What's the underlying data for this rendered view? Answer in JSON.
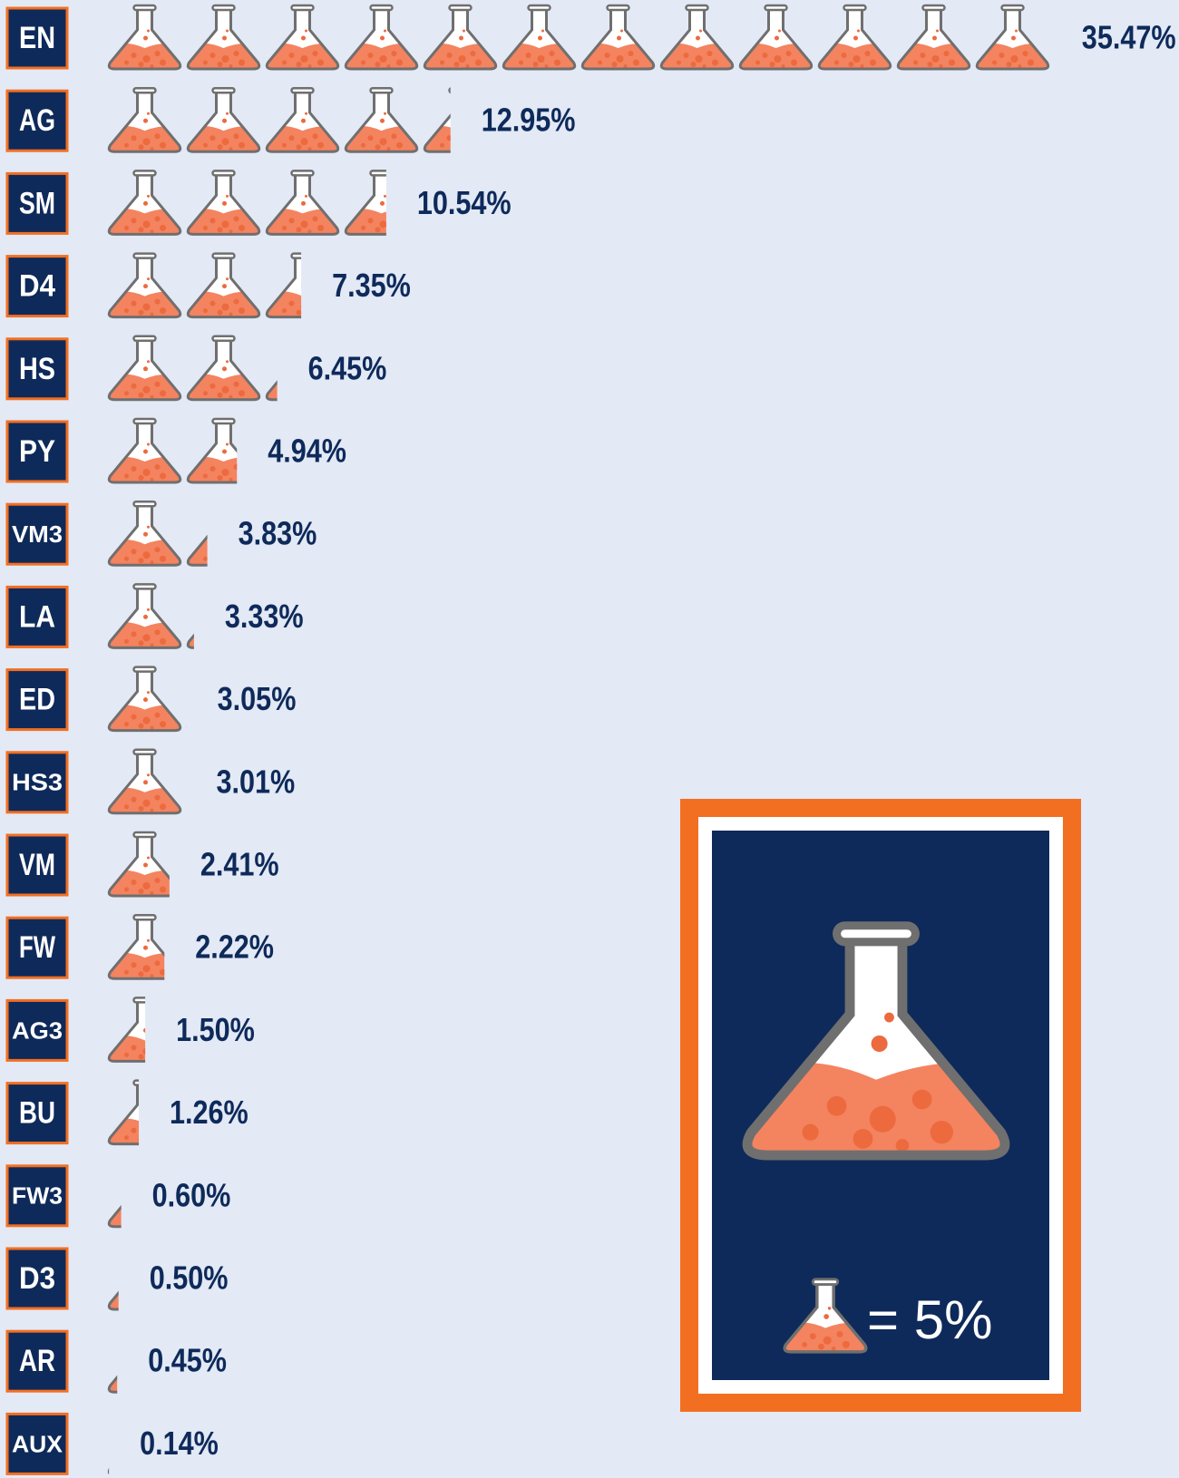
{
  "chart_data": {
    "type": "pictograph",
    "categories": [
      "EN",
      "AG",
      "SM",
      "D4",
      "HS",
      "PY",
      "VM3",
      "LA",
      "ED",
      "HS3",
      "VM",
      "FW",
      "AG3",
      "BU",
      "FW3",
      "D3",
      "AR",
      "AUX"
    ],
    "values": [
      35.47,
      12.95,
      10.54,
      7.35,
      6.45,
      4.94,
      3.83,
      3.33,
      3.05,
      3.01,
      2.41,
      2.22,
      1.5,
      1.26,
      0.6,
      0.5,
      0.45,
      0.14
    ],
    "value_labels": [
      "35.47%",
      "12.95%",
      "10.54%",
      "7.35%",
      "6.45%",
      "4.94%",
      "3.83%",
      "3.33%",
      "3.05%",
      "3.01%",
      "2.41%",
      "2.22%",
      "1.50%",
      "1.26%",
      "0.60%",
      "0.50%",
      "0.45%",
      "0.14%"
    ],
    "legend_label": "= 5%"
  }
}
